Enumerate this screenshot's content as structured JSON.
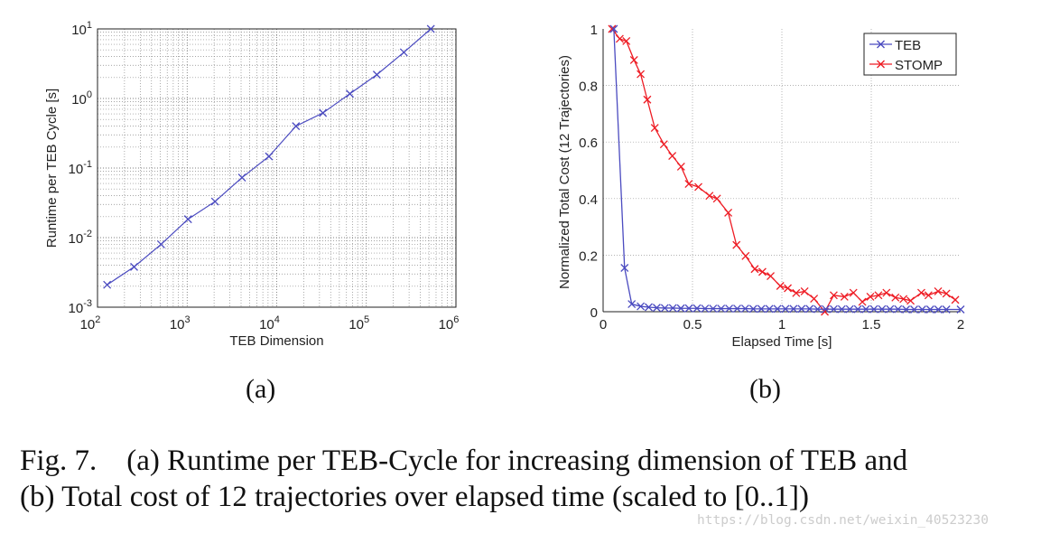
{
  "chart_data": [
    {
      "type": "line",
      "panel_label": "(a)",
      "xlabel": "TEB Dimension",
      "ylabel": "Runtime per TEB Cycle [s]",
      "xscale": "log",
      "yscale": "log",
      "xlim": [
        100,
        1000000
      ],
      "ylim": [
        0.001,
        10
      ],
      "xtick_labels": [
        {
          "base": "10",
          "exp": "2"
        },
        {
          "base": "10",
          "exp": "3"
        },
        {
          "base": "10",
          "exp": "4"
        },
        {
          "base": "10",
          "exp": "5"
        },
        {
          "base": "10",
          "exp": "6"
        }
      ],
      "ytick_labels": [
        {
          "base": "10",
          "exp": "-3"
        },
        {
          "base": "10",
          "exp": "-2"
        },
        {
          "base": "10",
          "exp": "-1"
        },
        {
          "base": "10",
          "exp": "0"
        },
        {
          "base": "10",
          "exp": "1"
        }
      ],
      "grid": "major and minor, dotted",
      "series": [
        {
          "color": "#4b4bc0",
          "marker": "x",
          "x": [
            128,
            256,
            512,
            1024,
            2048,
            4096,
            8192,
            16384,
            32768,
            65536,
            131072,
            262144,
            524288
          ],
          "y": [
            0.0021,
            0.0038,
            0.008,
            0.0184,
            0.033,
            0.073,
            0.147,
            0.4,
            0.62,
            1.17,
            2.2,
            4.6,
            10
          ]
        }
      ]
    },
    {
      "type": "line",
      "panel_label": "(b)",
      "xlabel": "Elapsed Time [s]",
      "ylabel": "Normalized Total Cost (12 Trajectories)",
      "xlim": [
        0,
        2
      ],
      "ylim": [
        0,
        1
      ],
      "xticks": [
        "0",
        "0.5",
        "1",
        "1.5",
        "2"
      ],
      "yticks": [
        "0",
        "0.2",
        "0.4",
        "0.6",
        "0.8",
        "1"
      ],
      "grid": "major, dotted",
      "legend": "top-right",
      "series": [
        {
          "name": "TEB",
          "color": "#4b4bc0",
          "marker": "x",
          "x": [
            0.06,
            0.12,
            0.16,
            0.21,
            0.255,
            0.3,
            0.345,
            0.39,
            0.435,
            0.48,
            0.525,
            0.57,
            0.615,
            0.66,
            0.705,
            0.75,
            0.795,
            0.84,
            0.885,
            0.93,
            0.975,
            1.02,
            1.065,
            1.11,
            1.155,
            1.2,
            1.245,
            1.29,
            1.335,
            1.38,
            1.425,
            1.47,
            1.515,
            1.56,
            1.605,
            1.65,
            1.695,
            1.74,
            1.785,
            1.83,
            1.875,
            1.92,
            2.0
          ],
          "y": [
            1.0,
            0.155,
            0.027,
            0.019,
            0.016,
            0.014,
            0.013,
            0.013,
            0.012,
            0.012,
            0.012,
            0.011,
            0.011,
            0.011,
            0.011,
            0.011,
            0.011,
            0.01,
            0.01,
            0.01,
            0.01,
            0.01,
            0.01,
            0.01,
            0.01,
            0.009,
            0.009,
            0.009,
            0.009,
            0.009,
            0.009,
            0.009,
            0.009,
            0.009,
            0.009,
            0.009,
            0.008,
            0.008,
            0.008,
            0.008,
            0.008,
            0.008,
            0.008
          ]
        },
        {
          "name": "STOMP",
          "color": "#ee1c24",
          "marker": "x",
          "x": [
            0.05,
            0.093,
            0.13,
            0.173,
            0.21,
            0.247,
            0.289,
            0.34,
            0.387,
            0.436,
            0.479,
            0.533,
            0.595,
            0.637,
            0.7,
            0.746,
            0.797,
            0.848,
            0.891,
            0.937,
            0.991,
            1.033,
            1.08,
            1.127,
            1.18,
            1.24,
            1.29,
            1.35,
            1.4,
            1.45,
            1.495,
            1.54,
            1.585,
            1.635,
            1.68,
            1.72,
            1.78,
            1.82,
            1.874,
            1.92,
            1.97
          ],
          "y": [
            1.0,
            0.965,
            0.957,
            0.89,
            0.84,
            0.75,
            0.65,
            0.592,
            0.551,
            0.513,
            0.452,
            0.441,
            0.41,
            0.4,
            0.35,
            0.236,
            0.197,
            0.151,
            0.141,
            0.126,
            0.091,
            0.083,
            0.066,
            0.072,
            0.046,
            0.0,
            0.058,
            0.053,
            0.067,
            0.035,
            0.053,
            0.058,
            0.067,
            0.05,
            0.045,
            0.039,
            0.067,
            0.058,
            0.072,
            0.064,
            0.042
          ]
        }
      ]
    }
  ],
  "caption": {
    "line1": "Fig. 7.    (a) Runtime per TEB-Cycle for increasing dimension of TEB and",
    "line2": "(b) Total cost of 12 trajectories over elapsed time (scaled to [0..1])"
  },
  "watermark": "https://blog.csdn.net/weixin_40523230"
}
